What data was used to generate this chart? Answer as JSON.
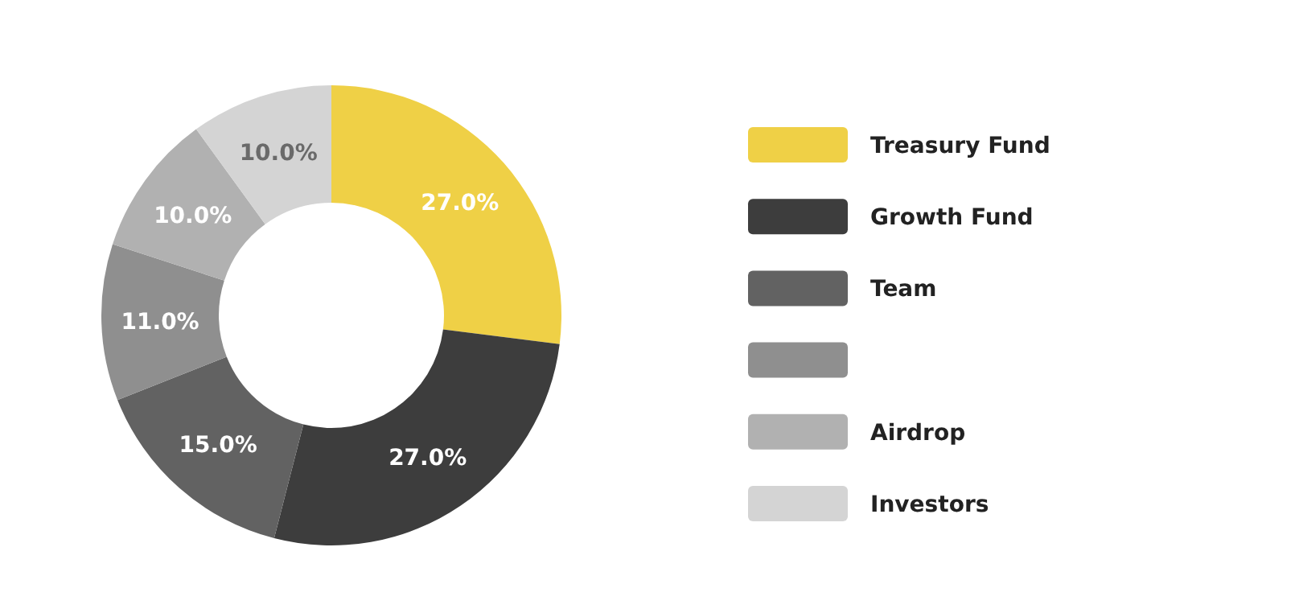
{
  "chart_data": {
    "type": "donut",
    "categories": [
      "Treasury Fund",
      "Growth Fund",
      "Team",
      null,
      "Airdrop",
      "Investors"
    ],
    "values": [
      27,
      27,
      15,
      11,
      10,
      10
    ],
    "colors": [
      "#efd046",
      "#3d3d3d",
      "#626262",
      "#8f8f8f",
      "#b1b1b1",
      "#d4d4d4"
    ],
    "value_labels": [
      "27.0%",
      "27.0%",
      "15.0%",
      "11.0%",
      "10.0%",
      "10.0%"
    ],
    "legend": "right"
  }
}
